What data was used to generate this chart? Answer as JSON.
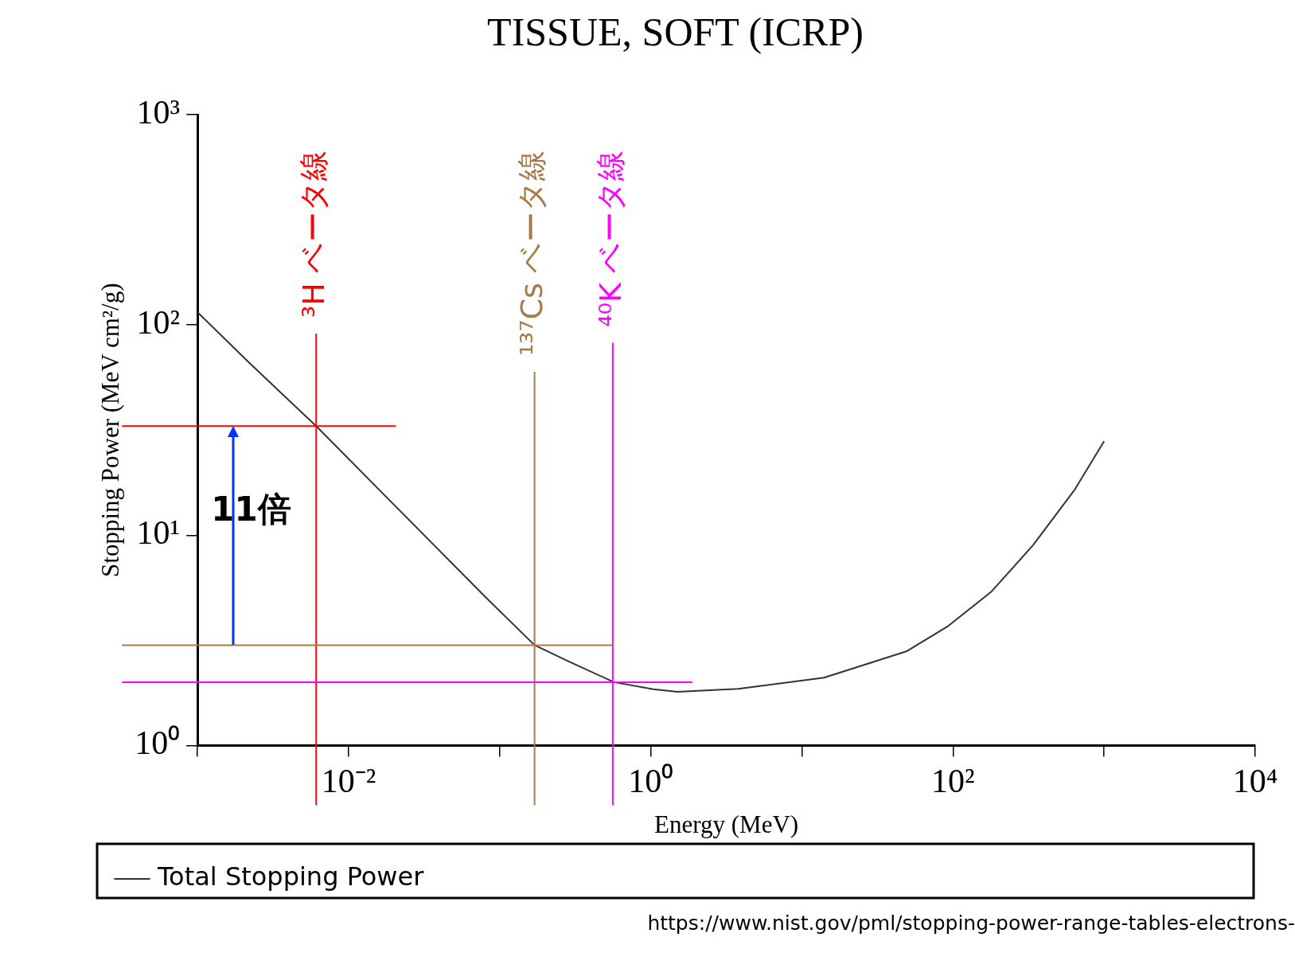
{
  "chart_data": {
    "type": "line",
    "title": "TISSUE, SOFT (ICRP)",
    "xlabel": "Energy (MeV)",
    "ylabel": "Stopping Power (MeV cm²/g)",
    "log": "xy",
    "xlim": [
      0.001,
      10000
    ],
    "ylim": [
      1,
      1000
    ],
    "xticks": [
      {
        "value": 0.001,
        "label": null
      },
      {
        "value": 0.01,
        "label": "10⁻²"
      },
      {
        "value": 0.1,
        "label": null
      },
      {
        "value": 1,
        "label": "10⁰"
      },
      {
        "value": 10,
        "label": null
      },
      {
        "value": 100,
        "label": "10²"
      },
      {
        "value": 1000,
        "label": null
      },
      {
        "value": 10000,
        "label": "10⁴"
      }
    ],
    "yticks": [
      {
        "value": 1,
        "label": "10⁰"
      },
      {
        "value": 10,
        "label": "10¹"
      },
      {
        "value": 100,
        "label": "10²"
      },
      {
        "value": 1000,
        "label": "10³"
      }
    ],
    "legend": "bottom left",
    "marker": "none",
    "line_style": "solid",
    "series": [
      {
        "name": "Total Stopping Power",
        "color": "#333333",
        "x": [
          0.001,
          0.0022,
          0.0061,
          0.022,
          0.08,
          0.17,
          0.29,
          0.57,
          1.04,
          1.5,
          3.8,
          14,
          49,
          93,
          180,
          340,
          640,
          1000
        ],
        "values": [
          115,
          66,
          33,
          13,
          5.1,
          3.0,
          2.5,
          2.0,
          1.85,
          1.8,
          1.86,
          2.1,
          2.8,
          3.7,
          5.4,
          9.0,
          16.5,
          28
        ]
      }
    ],
    "ref_lines": [
      {
        "axis": "x",
        "value": 0.0061,
        "label": "³H ベータ線",
        "color": "#ff0000"
      },
      {
        "axis": "x",
        "value": 0.17,
        "label": "¹³⁷Cs ベータ線",
        "color": "#a87a48"
      },
      {
        "axis": "x",
        "value": 0.56,
        "label": "⁴⁰K ベータ線",
        "color": "#ff00ff"
      },
      {
        "axis": "y",
        "value": 33,
        "color": "#ff0000"
      },
      {
        "axis": "y",
        "value": 3.0,
        "color": "#a87a48"
      },
      {
        "axis": "y",
        "value": 2.0,
        "color": "#ff00ff"
      }
    ],
    "annotations": [
      "11倍",
      "https://www.nist.gov/pml/stopping-power-range-tables-electrons-"
    ]
  }
}
